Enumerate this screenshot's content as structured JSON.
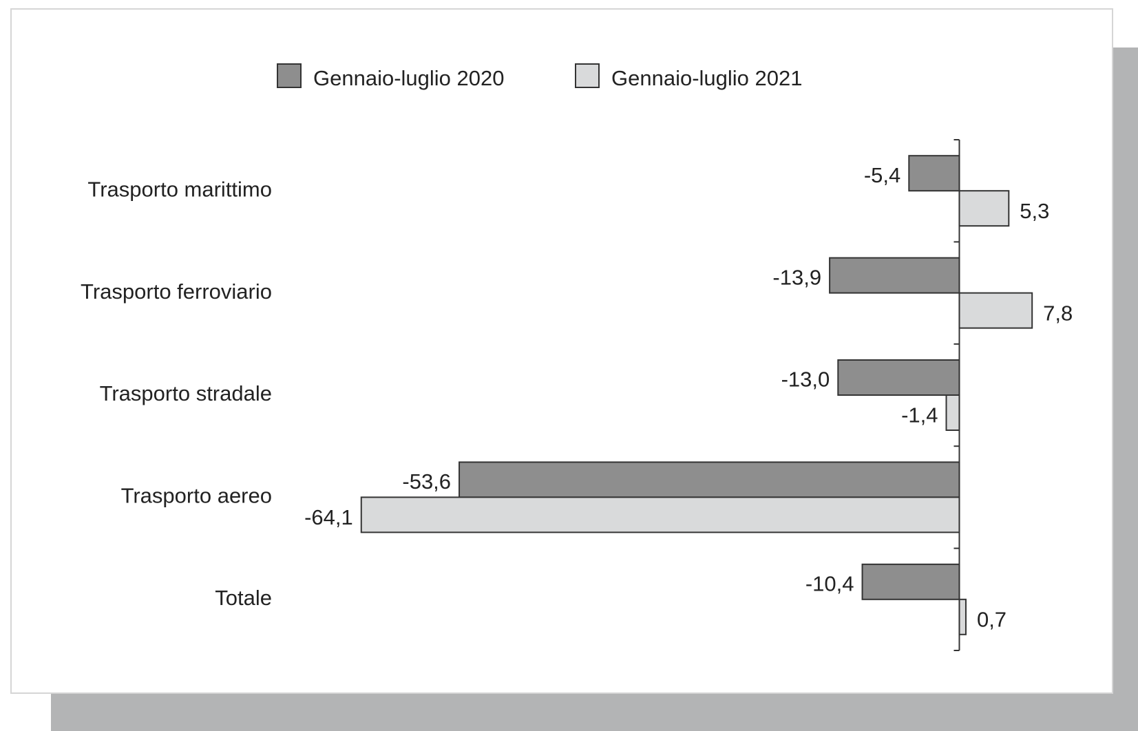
{
  "chart_data": {
    "type": "hbar",
    "categories": [
      "Trasporto marittimo",
      "Trasporto ferroviario",
      "Trasporto stradale",
      "Trasporto aereo",
      "Totale"
    ],
    "series": [
      {
        "name": "Gennaio-luglio 2020",
        "color": "#8e8e8e",
        "values": [
          -5.4,
          -13.9,
          -13.0,
          -53.6,
          -10.4
        ],
        "value_labels": [
          "-5,4",
          "-13,9",
          "-13,0",
          "-53,6",
          "-10,4"
        ]
      },
      {
        "name": "Gennaio-luglio 2021",
        "color": "#d9dadb",
        "values": [
          5.3,
          7.8,
          -1.4,
          -64.1,
          0.7
        ],
        "value_labels": [
          "5,3",
          "7,8",
          "-1,4",
          "-64,1",
          "0,7"
        ]
      }
    ],
    "xlim": [
      -66,
      10
    ],
    "legend": "top"
  }
}
